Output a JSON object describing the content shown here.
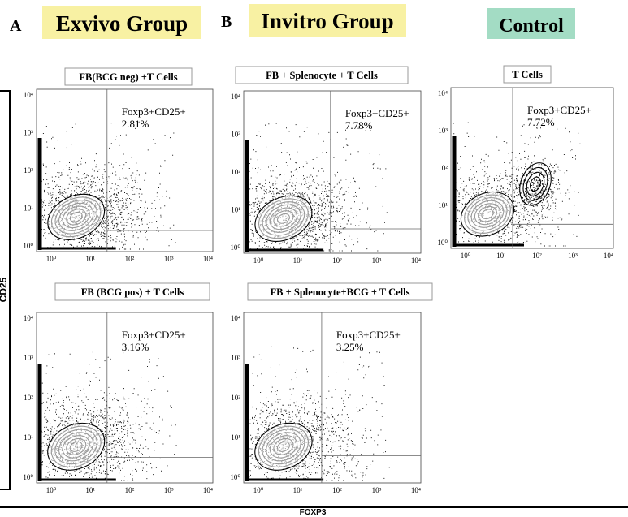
{
  "groups": [
    {
      "letter": "A",
      "title": "Exvivo Group"
    },
    {
      "letter": "B",
      "title": "Invitro Group"
    },
    {
      "title": "Control"
    }
  ],
  "y_axis_label": "CD25",
  "x_axis_label": "FOXP3",
  "ticks": [
    "10⁰",
    "10¹",
    "10²",
    "10³",
    "10⁴"
  ],
  "panels": [
    {
      "title": "FB(BCG neg) +T Cells",
      "gate_label": "Foxp3+CD25+",
      "percent": "2.81%"
    },
    {
      "title": "FB + Splenocyte + T Cells",
      "gate_label": "Foxp3+CD25+",
      "percent": "7.78%"
    },
    {
      "title": "T Cells",
      "gate_label": "Foxp3+CD25+",
      "percent": "7.72%"
    },
    {
      "title": "FB (BCG pos) + T Cells",
      "gate_label": "Foxp3+CD25+",
      "percent": "3.16%"
    },
    {
      "title": "FB + Splenocyte+BCG + T Cells",
      "gate_label": "Foxp3+CD25+",
      "percent": "3.25%"
    }
  ]
}
